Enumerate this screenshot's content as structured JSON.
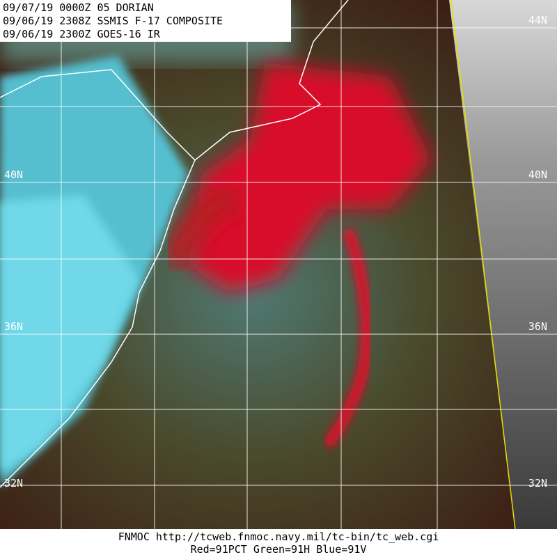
{
  "header": {
    "lines": [
      "09/07/19 0000Z  05 DORIAN",
      "09/06/19 2308Z  SSMIS F-17 COMPOSITE",
      "09/06/19 2300Z  GOES-16 IR"
    ]
  },
  "lat_labels": {
    "left": [
      "40N",
      "36N",
      "32N"
    ],
    "right": [
      "44N",
      "40N",
      "36N",
      "32N"
    ]
  },
  "footer": {
    "lines": [
      "FNMOC  http://tcweb.fnmoc.navy.mil/tc-bin/tc_web.cgi",
      "Red=91PCT  Green=91H  Blue=91V"
    ]
  }
}
